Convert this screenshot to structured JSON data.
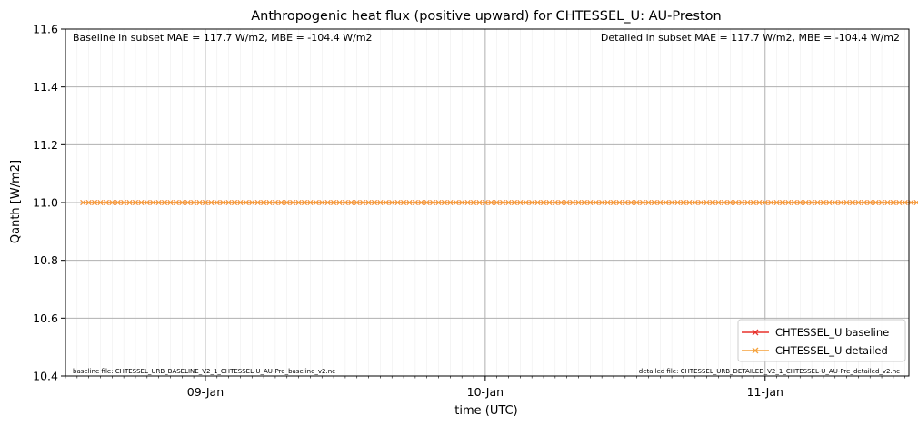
{
  "chart_data": {
    "type": "line",
    "title": "Anthropogenic heat flux (positive upward) for CHTESSEL_U: AU-Preston",
    "xlabel": "time (UTC)",
    "ylabel": "Qanth [W/m2]",
    "xlim": [
      "2004-01-08T12:00",
      "2004-01-11T12:20"
    ],
    "ylim": [
      10.4,
      11.6
    ],
    "yticks": [
      "10.4",
      "10.6",
      "10.8",
      "11.0",
      "11.2",
      "11.4",
      "11.6"
    ],
    "xticks": [
      "09-Jan",
      "10-Jan",
      "11-Jan"
    ],
    "grid": true,
    "legend_position": "lower-right",
    "x_start": "2004-01-08T13:30",
    "x_end": "2004-01-11T13:30",
    "x_step_minutes": 30,
    "series": [
      {
        "name": "CHTESSEL_U baseline",
        "color": "#e8322c",
        "marker": "x",
        "constant_value": 11.0
      },
      {
        "name": "CHTESSEL_U detailed",
        "color": "#f5a13a",
        "marker": "x",
        "constant_value": 11.0
      }
    ],
    "annotations": {
      "baseline_stats": "Baseline in subset MAE = 117.7 W/m2, MBE = -104.4 W/m2",
      "detailed_stats": "Detailed in subset MAE = 117.7 W/m2, MBE = -104.4 W/m2",
      "baseline_file": "baseline file: CHTESSEL_URB_BASELINE_V2_1_CHTESSEL-U_AU-Pre_baseline_v2.nc",
      "detailed_file": "detailed file: CHTESSEL_URB_DETAILED_V2_1_CHTESSEL-U_AU-Pre_detailed_v2.nc"
    }
  }
}
